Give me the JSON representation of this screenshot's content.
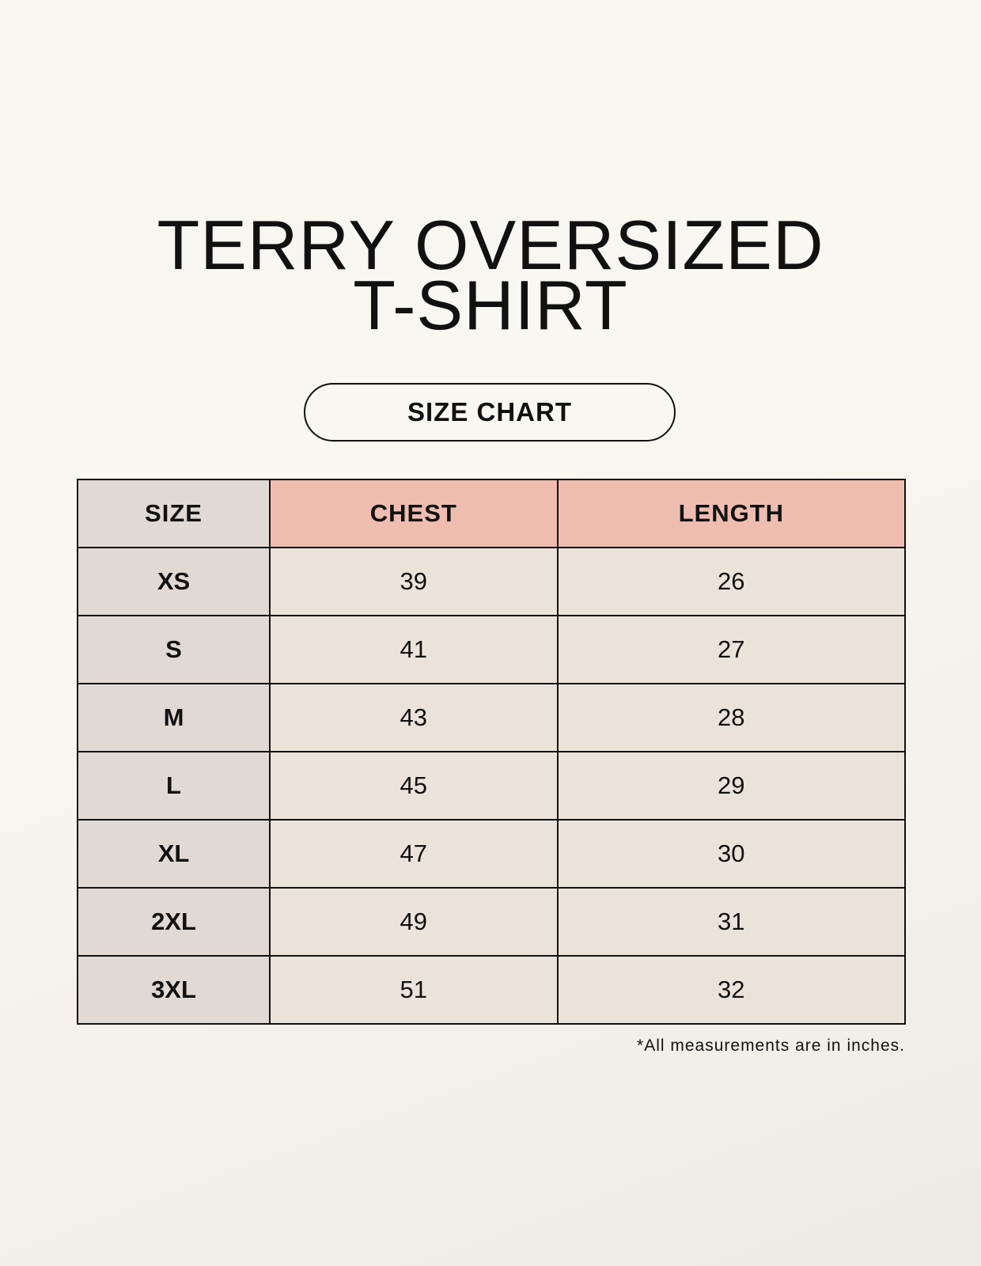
{
  "title": {
    "line1": "TERRY OVERSIZED",
    "line2": "T-SHIRT"
  },
  "badge": "SIZE CHART",
  "table": {
    "headers": [
      "SIZE",
      "CHEST",
      "LENGTH"
    ],
    "rows": [
      [
        "XS",
        "39",
        "26"
      ],
      [
        "S",
        "41",
        "27"
      ],
      [
        "M",
        "43",
        "28"
      ],
      [
        "L",
        "45",
        "29"
      ],
      [
        "XL",
        "47",
        "30"
      ],
      [
        "2XL",
        "49",
        "31"
      ],
      [
        "3XL",
        "51",
        "32"
      ]
    ]
  },
  "note": "*All measurements are in inches.",
  "colors": {
    "size_column": "#e0d9d4",
    "measure_header": "#eebdb0",
    "measure_cells": "#ebe3d9"
  }
}
